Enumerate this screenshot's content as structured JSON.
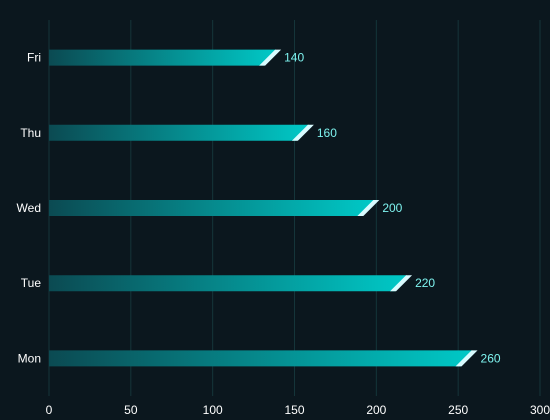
{
  "chart_data": {
    "type": "bar",
    "orientation": "horizontal",
    "categories": [
      "Mon",
      "Tue",
      "Wed",
      "Thu",
      "Fri"
    ],
    "series": [
      {
        "values": [
          260,
          220,
          200,
          160,
          140
        ]
      }
    ],
    "title": "",
    "xlabel": "",
    "ylabel": "",
    "xlim": [
      0,
      300
    ],
    "xticks": [
      0,
      50,
      100,
      150,
      200,
      250,
      300
    ],
    "grid": true,
    "legend": "none",
    "data_labels": true
  },
  "colors": {
    "background": "#0b171e",
    "grid": "#15353a",
    "bar_start": "#0b4a52",
    "bar_end": "#00c9c7",
    "bar_cap": "#d9fbff",
    "label_text": "#ffffff",
    "value_text": "#7ef3ef"
  }
}
